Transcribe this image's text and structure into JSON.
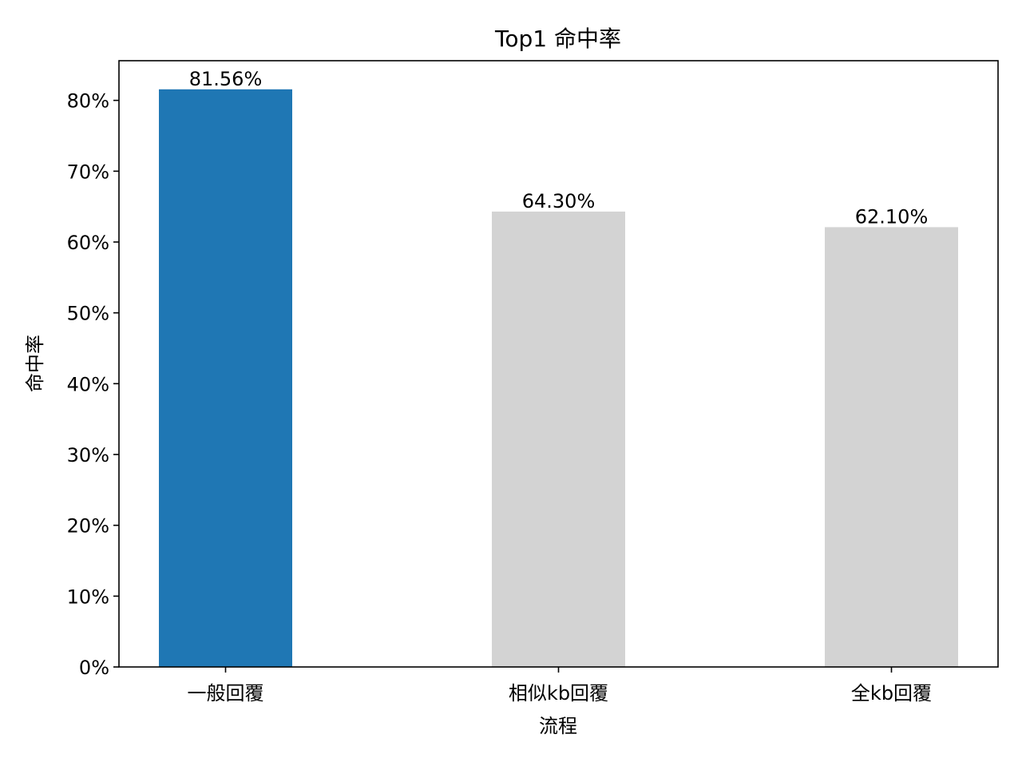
{
  "chart_data": {
    "type": "bar",
    "title": "Top1 命中率",
    "xlabel": "流程",
    "ylabel": "命中率",
    "categories": [
      "一般回覆",
      "相似kb回覆",
      "全kb回覆"
    ],
    "values": [
      81.56,
      64.3,
      62.1
    ],
    "value_labels": [
      "81.56%",
      "64.30%",
      "62.10%"
    ],
    "colors": [
      "#1f77b4",
      "#d3d3d3",
      "#d3d3d3"
    ],
    "ylim": [
      0,
      85.6
    ],
    "yticks": [
      0,
      10,
      20,
      30,
      40,
      50,
      60,
      70,
      80
    ],
    "ytick_labels": [
      "0%",
      "10%",
      "20%",
      "30%",
      "40%",
      "50%",
      "60%",
      "70%",
      "80%"
    ],
    "grid": false,
    "legend": "none"
  }
}
